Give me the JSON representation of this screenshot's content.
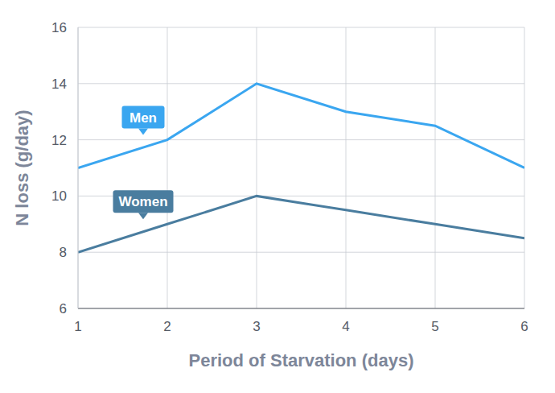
{
  "chart_data": {
    "type": "line",
    "x_label": "Period of Starvation (days)",
    "y_label": "N loss (g/day)",
    "x": [
      1,
      2,
      3,
      4,
      5,
      6
    ],
    "series": [
      {
        "name": "Men",
        "color": "#3aa6f0",
        "values": [
          11,
          12,
          14,
          13,
          12.5,
          11
        ]
      },
      {
        "name": "Women",
        "color": "#4a7d9f",
        "values": [
          8,
          9,
          10,
          9.5,
          9,
          8.5
        ]
      }
    ],
    "xlim": [
      1,
      6
    ],
    "xticks": [
      1,
      2,
      3,
      4,
      5,
      6
    ],
    "ylim": [
      6,
      16
    ],
    "yticks": [
      6,
      8,
      10,
      12,
      14,
      16
    ],
    "grid": true
  }
}
